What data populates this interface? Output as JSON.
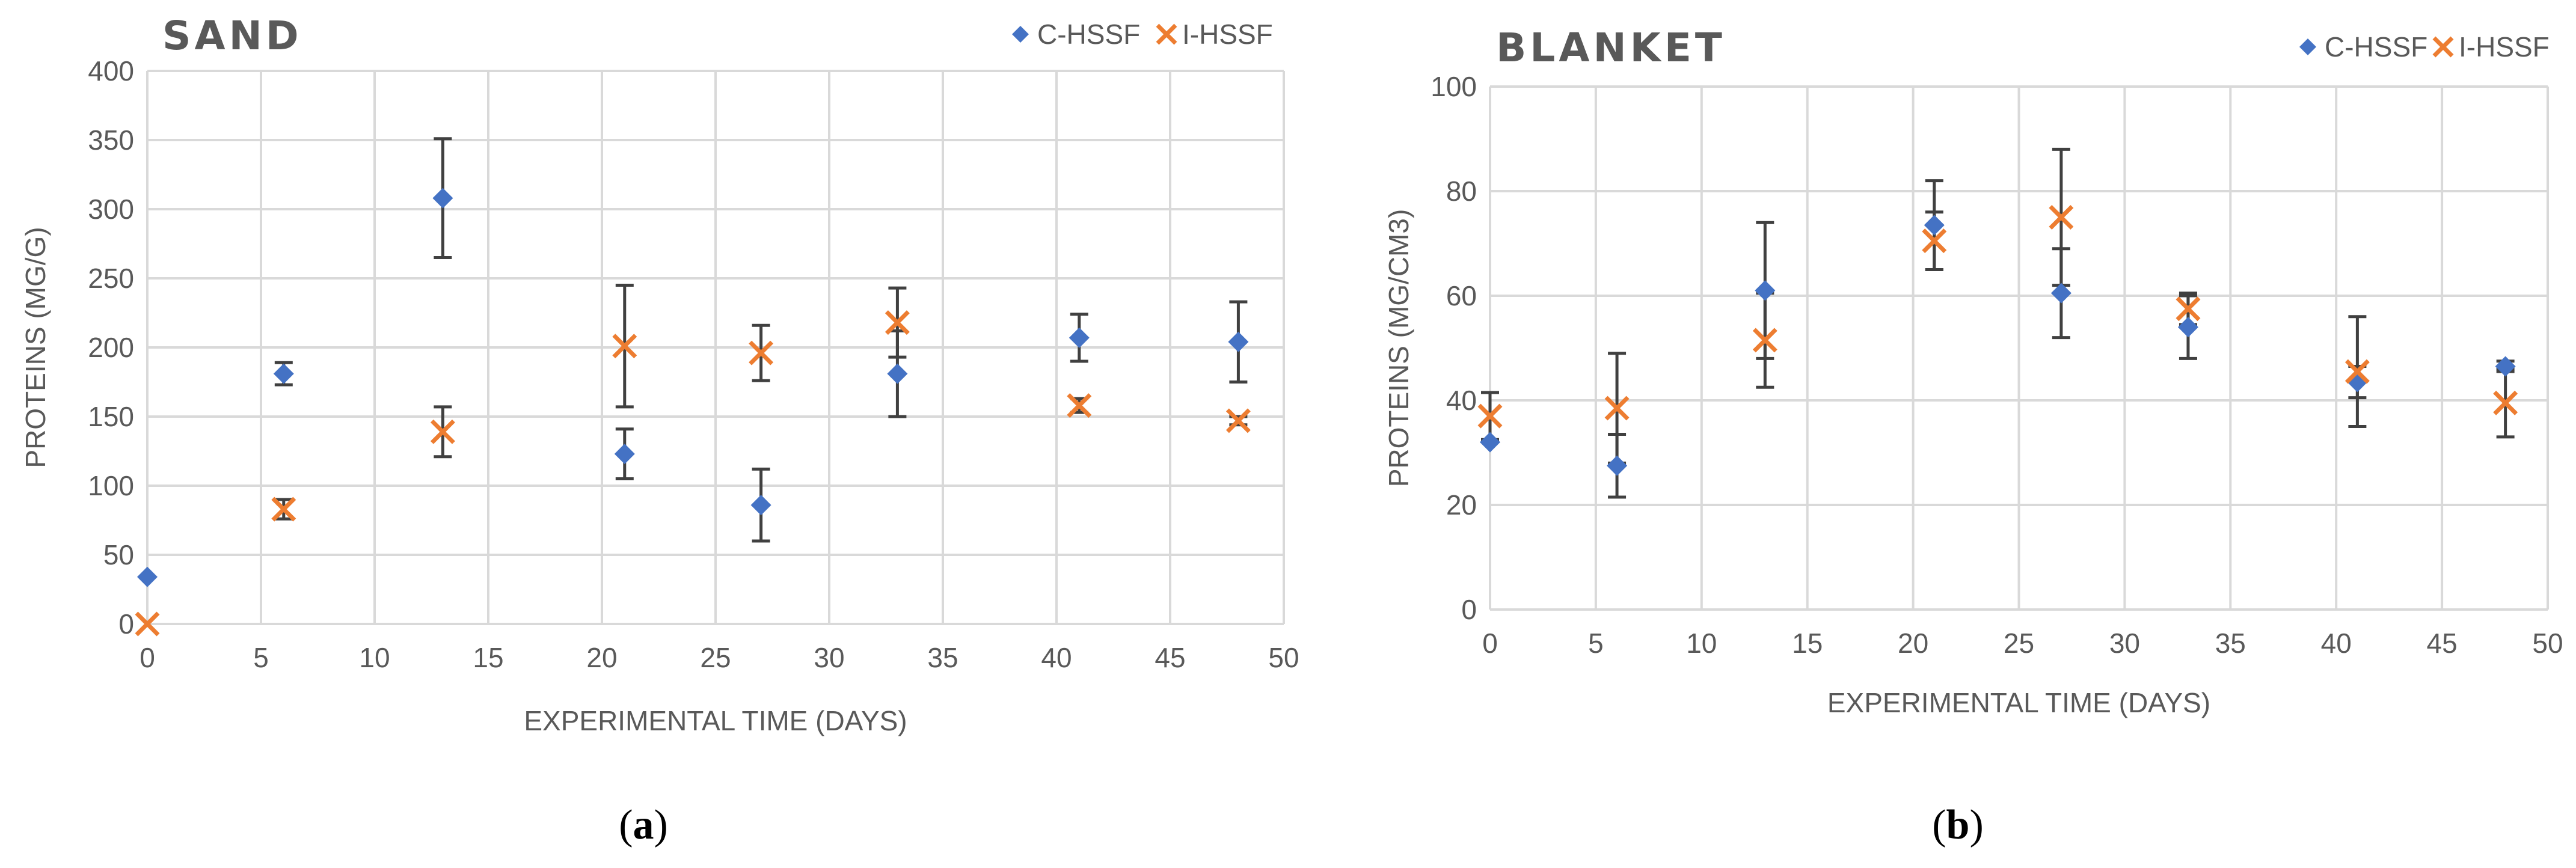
{
  "colors": {
    "c_hssf": "#4472c4",
    "i_hssf": "#ed7d31",
    "grid": "#d9d9d9",
    "text": "#595959",
    "errorbar": "#404040"
  },
  "captions": [
    "(a)",
    "(b)"
  ],
  "chart_data": [
    {
      "type": "scatter",
      "title": "SAND",
      "xlabel": "EXPERIMENTAL TIME (DAYS)",
      "ylabel": "PROTEINS  (MG/G)",
      "xlim": [
        0,
        50
      ],
      "ylim": [
        0,
        400
      ],
      "xticks": [
        0,
        5,
        10,
        15,
        20,
        25,
        30,
        35,
        40,
        45,
        50
      ],
      "yticks": [
        0,
        50,
        100,
        150,
        200,
        250,
        300,
        350,
        400
      ],
      "grid": true,
      "legend_position": "top-right",
      "series": [
        {
          "name": "C-HSSF",
          "marker": "diamond",
          "x": [
            0,
            6,
            13,
            21,
            27,
            33,
            41,
            48
          ],
          "y": [
            34,
            181,
            308,
            123,
            86,
            181,
            207,
            204
          ],
          "err": [
            0,
            8,
            43,
            18,
            26,
            31,
            17,
            29
          ]
        },
        {
          "name": "I-HSSF",
          "marker": "x",
          "x": [
            0,
            6,
            13,
            21,
            27,
            33,
            41,
            48
          ],
          "y": [
            0,
            83,
            139,
            201,
            196,
            218,
            158,
            147
          ],
          "err": [
            0,
            7,
            18,
            44,
            20,
            25,
            5,
            3
          ]
        }
      ]
    },
    {
      "type": "scatter",
      "title": "BLANKET",
      "xlabel": "EXPERIMENTAL TIME (DAYS)",
      "ylabel": "PROTEINS  (MG/CM3)",
      "xlim": [
        0,
        50
      ],
      "ylim": [
        0,
        100
      ],
      "xticks": [
        0,
        5,
        10,
        15,
        20,
        25,
        30,
        35,
        40,
        45,
        50
      ],
      "yticks": [
        0,
        20,
        40,
        60,
        80,
        100
      ],
      "grid": true,
      "legend_position": "top-right",
      "series": [
        {
          "name": "C-HSSF",
          "marker": "diamond",
          "x": [
            0,
            6,
            13,
            21,
            27,
            33,
            41,
            48
          ],
          "y": [
            32,
            27.5,
            61,
            73.5,
            60.5,
            54,
            43.5,
            46.5
          ],
          "err": [
            0,
            6,
            13,
            8.5,
            8.5,
            6,
            3,
            1
          ]
        },
        {
          "name": "I-HSSF",
          "marker": "x",
          "x": [
            0,
            6,
            13,
            21,
            27,
            33,
            41,
            48
          ],
          "y": [
            37,
            38.5,
            51.5,
            70.5,
            75,
            57.5,
            45.5,
            39.5
          ],
          "err": [
            4.5,
            10.5,
            9,
            5.5,
            13,
            3,
            10.5,
            6.5
          ]
        }
      ]
    }
  ]
}
